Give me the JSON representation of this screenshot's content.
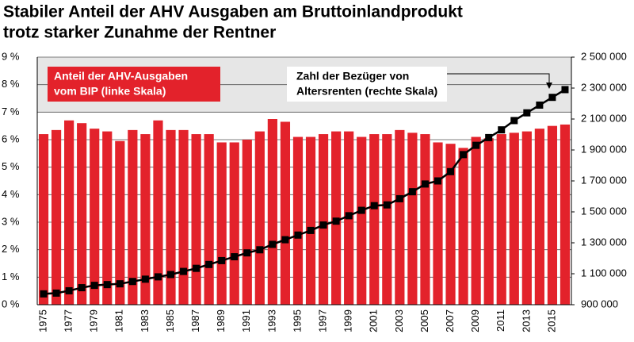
{
  "chart_data": {
    "type": "bar",
    "title": [
      "Stabiler Anteil der AHV Ausgaben am Bruttoinlandprodukt",
      "trotz starker Zunahme der Rentner"
    ],
    "categories": [
      "1975",
      null,
      "1977",
      null,
      "1979",
      null,
      "1981",
      null,
      "1983",
      null,
      "1985",
      null,
      "1987",
      null,
      "1989",
      null,
      "1991",
      null,
      "1993",
      null,
      "1995",
      null,
      "1997",
      null,
      "1999",
      null,
      "2001",
      null,
      "2003",
      null,
      "2005",
      null,
      "2007",
      null,
      "2009",
      null,
      "2011",
      null,
      "2013",
      null,
      "2015",
      null
    ],
    "series": [
      {
        "type": "bar",
        "color": "#e3222b",
        "values": [
          6.2,
          6.35,
          6.7,
          6.6,
          6.4,
          6.3,
          5.95,
          6.35,
          6.2,
          6.7,
          6.35,
          6.35,
          6.2,
          6.2,
          5.9,
          5.9,
          6.0,
          6.3,
          6.75,
          6.65,
          6.1,
          6.1,
          6.2,
          6.3,
          6.3,
          6.1,
          6.2,
          6.2,
          6.35,
          6.25,
          6.2,
          5.9,
          5.85,
          5.7,
          6.1,
          6.05,
          6.2,
          6.25,
          6.3,
          6.4,
          6.5,
          6.55
        ]
      },
      {
        "type": "line",
        "axis": "y2",
        "color": "#000000",
        "values": [
          970000,
          975000,
          990000,
          1010000,
          1025000,
          1030000,
          1035000,
          1050000,
          1065000,
          1080000,
          1095000,
          1115000,
          1135000,
          1160000,
          1185000,
          1210000,
          1235000,
          1255000,
          1290000,
          1320000,
          1350000,
          1380000,
          1415000,
          1440000,
          1475000,
          1510000,
          1540000,
          1545000,
          1585000,
          1630000,
          1680000,
          1700000,
          1760000,
          1870000,
          1930000,
          1980000,
          2030000,
          2090000,
          2140000,
          2190000,
          2240000,
          2290000
        ]
      }
    ],
    "ylim": [
      0,
      9
    ],
    "yticks": [
      {
        "value": 0,
        "label": "0 %"
      },
      {
        "value": 1,
        "label": "1 %"
      },
      {
        "value": 2,
        "label": "2 %"
      },
      {
        "value": 3,
        "label": "3 %"
      },
      {
        "value": 4,
        "label": "4 %"
      },
      {
        "value": 5,
        "label": "5 %"
      },
      {
        "value": 6,
        "label": "6 %"
      },
      {
        "value": 7,
        "label": "7 %"
      },
      {
        "value": 8,
        "label": "8 %"
      },
      {
        "value": 9,
        "label": "9 %"
      }
    ],
    "y2lim": [
      900000,
      2500000
    ],
    "y2ticks": [
      {
        "value": 900000,
        "label": "900 000"
      },
      {
        "value": 1100000,
        "label": "1 100 000"
      },
      {
        "value": 1300000,
        "label": "1 300 000"
      },
      {
        "value": 1500000,
        "label": "1 500 000"
      },
      {
        "value": 1700000,
        "label": "1 700 000"
      },
      {
        "value": 1900000,
        "label": "1 900 000"
      },
      {
        "value": 2100000,
        "label": "2 100 000"
      },
      {
        "value": 2300000,
        "label": "2 300 000"
      },
      {
        "value": 2500000,
        "label": "2 500 000"
      }
    ],
    "grid": true,
    "annotations": [
      {
        "lines": [
          "Anteil der AHV-Ausgaben",
          "vom BIP (linke Skala)"
        ]
      },
      {
        "lines": [
          "Zahl der Bezüger von",
          "Altersrenten (rechte Skala)"
        ]
      }
    ]
  }
}
